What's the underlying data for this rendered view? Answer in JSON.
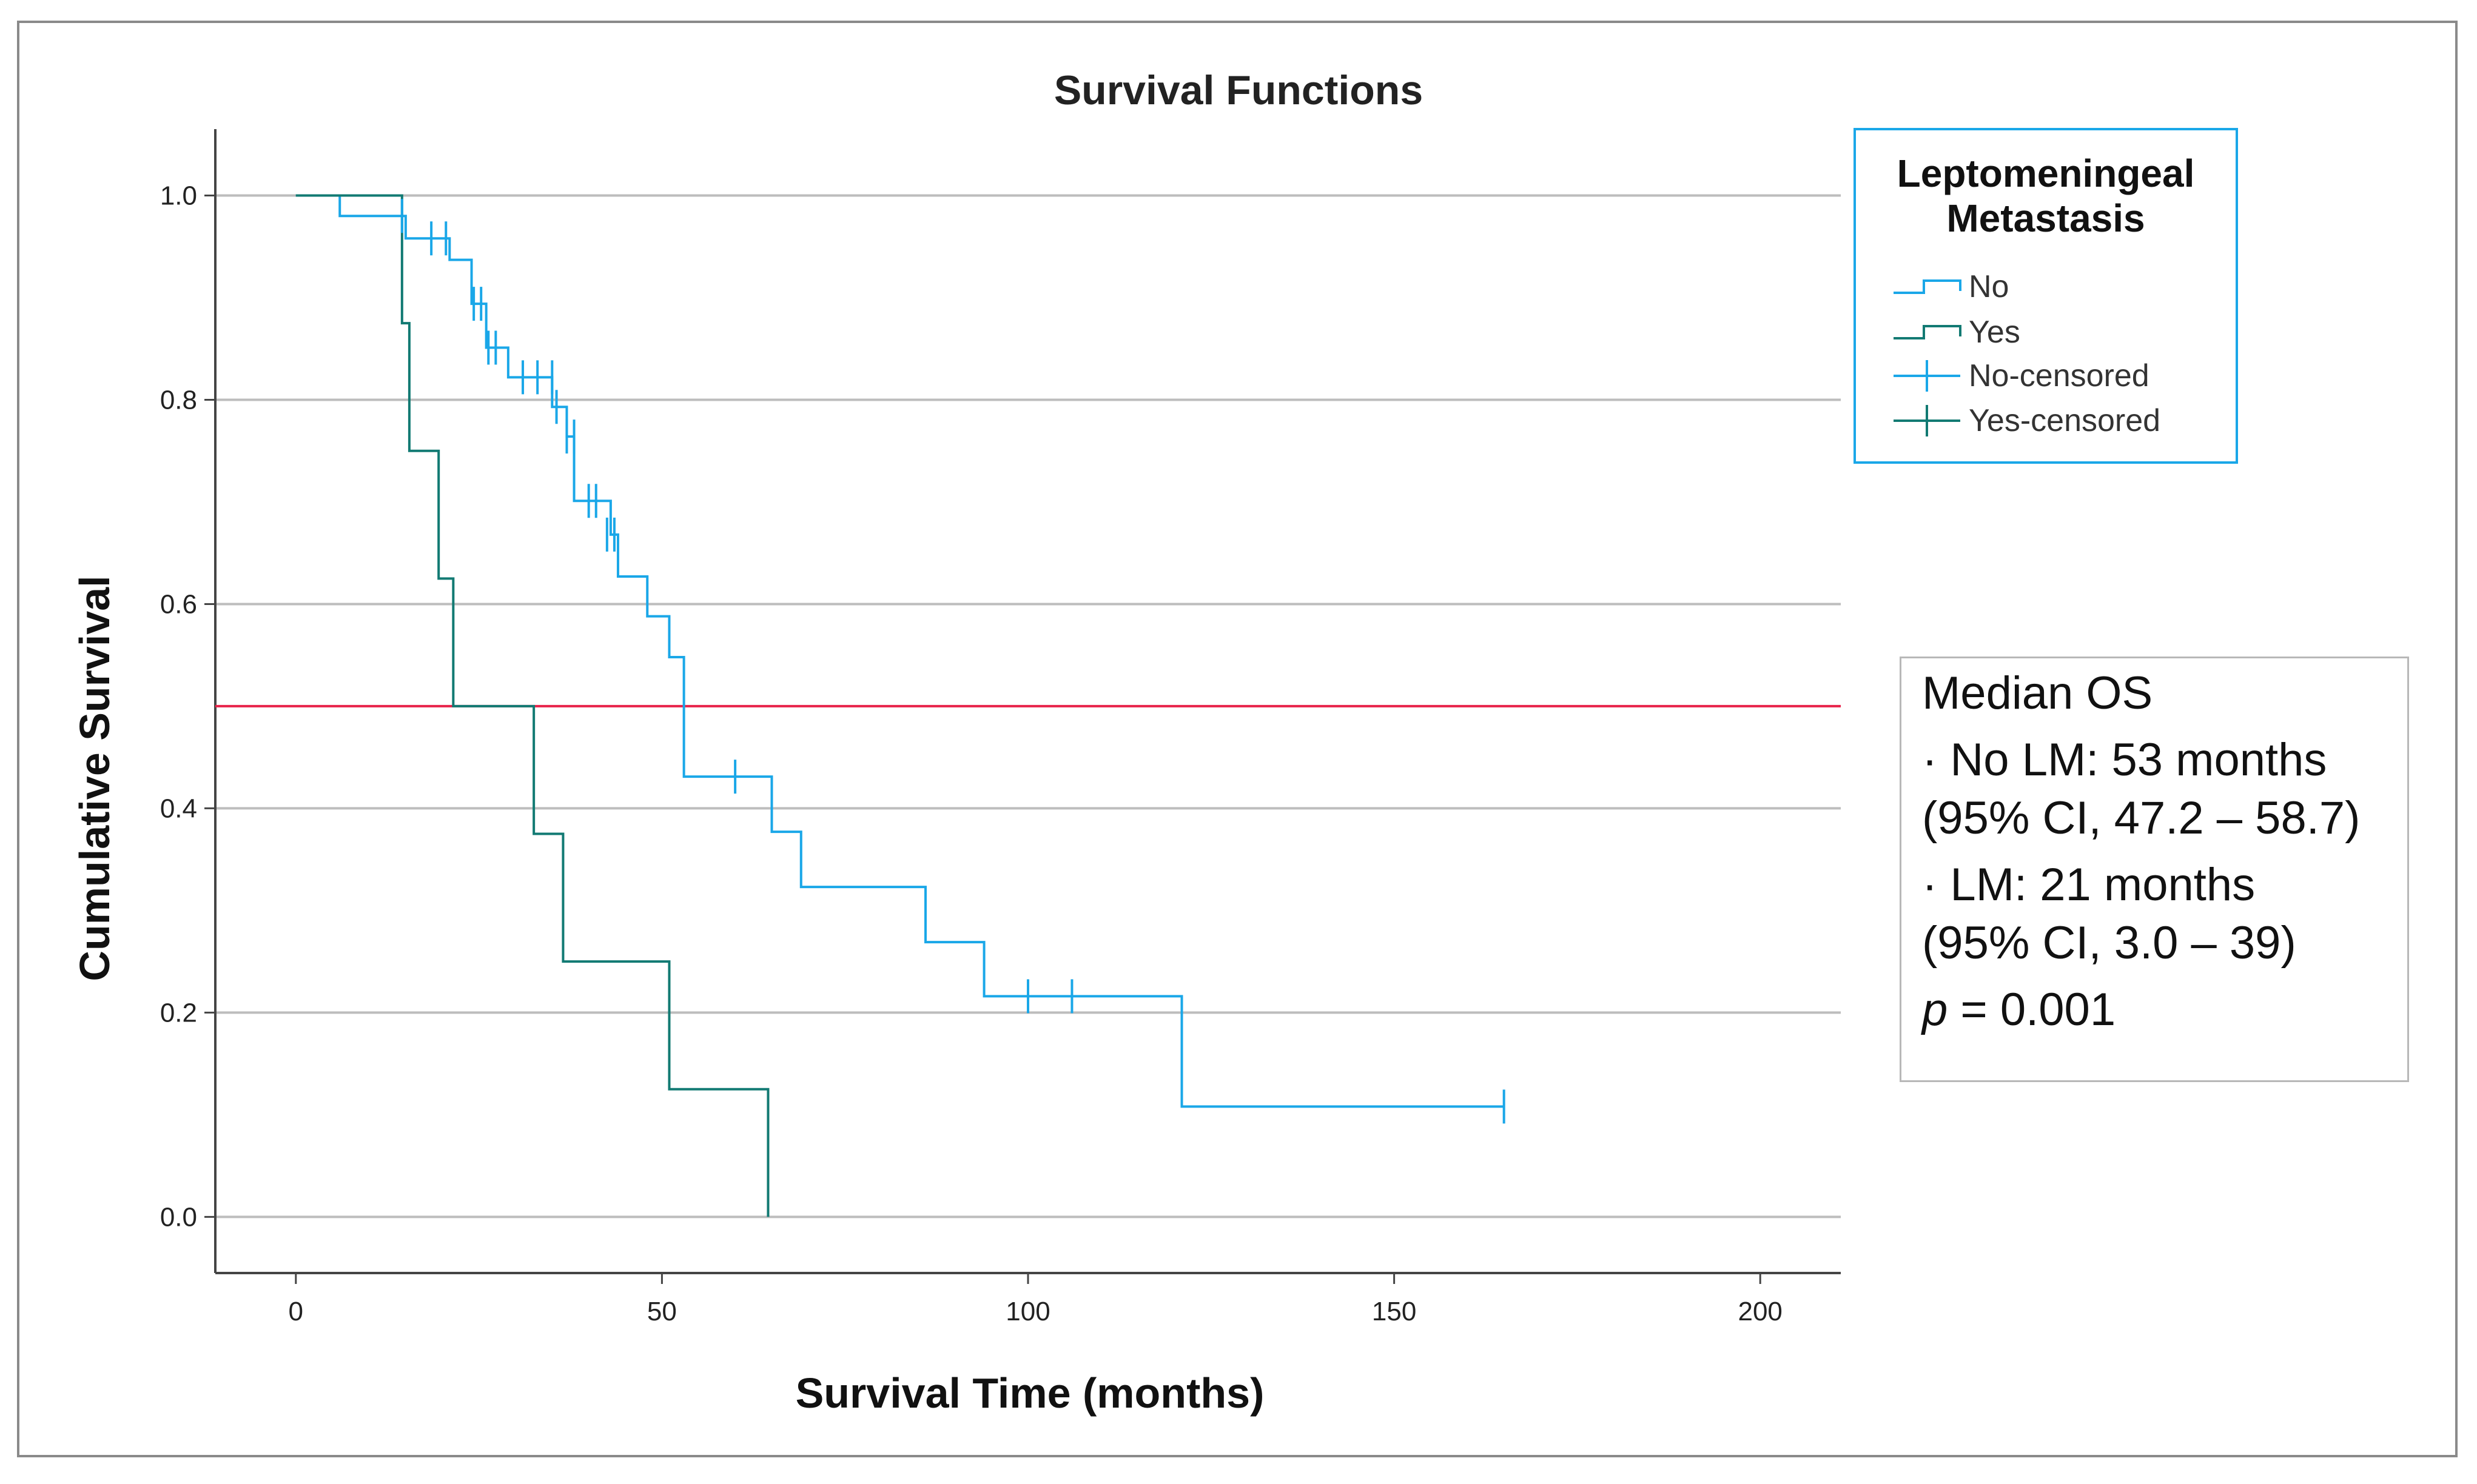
{
  "chart_data": {
    "type": "line",
    "title": "Survival Functions",
    "xlabel": "Survival Time (months)",
    "ylabel": "Cumulative Survival",
    "xlim": [
      -11,
      211
    ],
    "ylim": [
      -0.055,
      1.065
    ],
    "xticks": [
      0,
      50,
      100,
      150,
      200
    ],
    "xtick_labels": [
      "0",
      "50",
      "100",
      "150",
      "200"
    ],
    "yticks": [
      0.0,
      0.2,
      0.4,
      0.6,
      0.8,
      1.0
    ],
    "ytick_labels": [
      "0.0",
      "0.2",
      "0.4",
      "0.6",
      "0.8",
      "1.0"
    ],
    "grid": true,
    "reference_line": {
      "y": 0.5,
      "color": "#e8234a"
    },
    "legend": {
      "title_lines": [
        "Leptomeningeal",
        "Metastasis"
      ],
      "placement": "top-right",
      "entries": [
        "No",
        "Yes",
        "No-censored",
        "Yes-censored"
      ]
    },
    "series": [
      {
        "name": "No",
        "color": "#1aa7e8",
        "steps": [
          [
            0,
            1.0
          ],
          [
            6,
            0.98
          ],
          [
            15,
            0.958
          ],
          [
            21,
            0.937
          ],
          [
            24,
            0.894
          ],
          [
            26,
            0.851
          ],
          [
            29,
            0.822
          ],
          [
            35,
            0.793
          ],
          [
            37,
            0.764
          ],
          [
            38,
            0.701
          ],
          [
            43,
            0.668
          ],
          [
            44,
            0.627
          ],
          [
            48,
            0.588
          ],
          [
            51,
            0.548
          ],
          [
            53,
            0.431
          ],
          [
            65,
            0.377
          ],
          [
            69,
            0.323
          ],
          [
            86,
            0.269
          ],
          [
            94,
            0.216
          ],
          [
            121,
            0.108
          ],
          [
            165,
            0.108
          ]
        ],
        "censored": [
          [
            14.5,
            0.98
          ],
          [
            18.5,
            0.958
          ],
          [
            20.5,
            0.958
          ],
          [
            24.3,
            0.894
          ],
          [
            25.3,
            0.894
          ],
          [
            26.3,
            0.851
          ],
          [
            27.3,
            0.851
          ],
          [
            31,
            0.822
          ],
          [
            33,
            0.822
          ],
          [
            35,
            0.822
          ],
          [
            35.6,
            0.793
          ],
          [
            37,
            0.764
          ],
          [
            38,
            0.764
          ],
          [
            40,
            0.701
          ],
          [
            41,
            0.701
          ],
          [
            42.5,
            0.668
          ],
          [
            43.5,
            0.668
          ],
          [
            60,
            0.431
          ],
          [
            100,
            0.216
          ],
          [
            106,
            0.216
          ],
          [
            165,
            0.108
          ]
        ]
      },
      {
        "name": "Yes",
        "color": "#127a73",
        "steps": [
          [
            0,
            1.0
          ],
          [
            14.5,
            0.875
          ],
          [
            15.5,
            0.75
          ],
          [
            19.5,
            0.625
          ],
          [
            21.5,
            0.5
          ],
          [
            32.5,
            0.375
          ],
          [
            36.5,
            0.25
          ],
          [
            51,
            0.125
          ],
          [
            64.5,
            0.0
          ]
        ],
        "censored": []
      }
    ],
    "annotation": {
      "title": "Median OS",
      "line1": "· No LM: 53 months",
      "line2": "(95% CI, 47.2 – 58.7)",
      "line3": "· LM: 21 months",
      "line4": "(95% CI, 3.0 – 39)",
      "p_label": "p",
      "p_value": " = 0.001"
    }
  }
}
